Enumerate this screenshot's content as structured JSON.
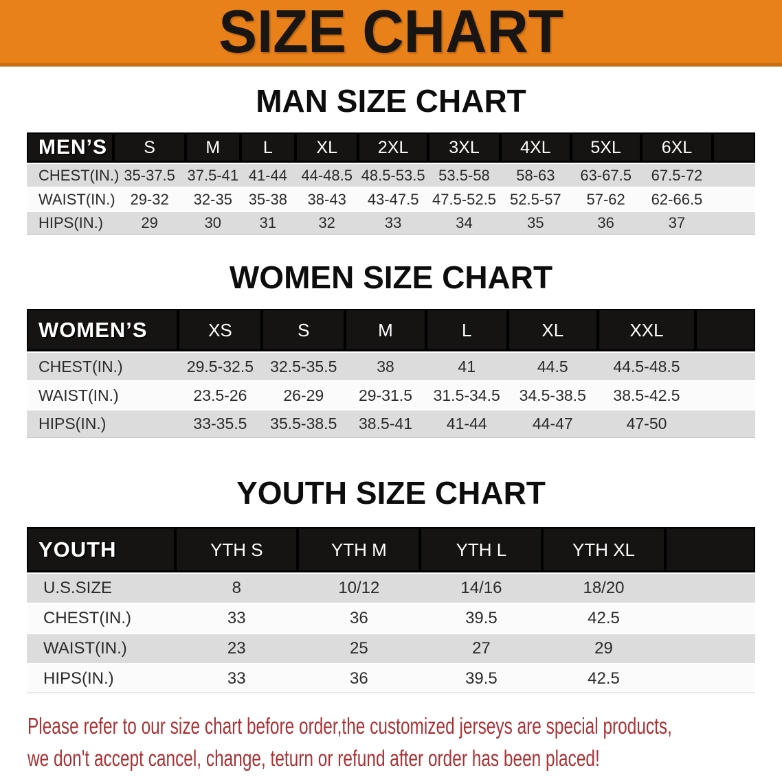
{
  "banner": {
    "title": "SIZE CHART"
  },
  "chart_data": [
    {
      "type": "table",
      "title": "MAN SIZE CHART",
      "header_label": "MEN’S",
      "columns": [
        "S",
        "M",
        "L",
        "XL",
        "2XL",
        "3XL",
        "4XL",
        "5XL",
        "6XL"
      ],
      "rows": [
        {
          "label": "CHEST(IN.)",
          "values": [
            "35-37.5",
            "37.5-41",
            "41-44",
            "44-48.5",
            "48.5-53.5",
            "53.5-58",
            "58-63",
            "63-67.5",
            "67.5-72"
          ]
        },
        {
          "label": "WAIST(IN.)",
          "values": [
            "29-32",
            "32-35",
            "35-38",
            "38-43",
            "43-47.5",
            "47.5-52.5",
            "52.5-57",
            "57-62",
            "62-66.5"
          ]
        },
        {
          "label": "HIPS(IN.)",
          "values": [
            "29",
            "30",
            "31",
            "32",
            "33",
            "34",
            "35",
            "36",
            "37"
          ]
        }
      ]
    },
    {
      "type": "table",
      "title": "WOMEN SIZE CHART",
      "header_label": "WOMEN’S",
      "columns": [
        "XS",
        "S",
        "M",
        "L",
        "XL",
        "XXL"
      ],
      "rows": [
        {
          "label": "CHEST(IN.)",
          "values": [
            "29.5-32.5",
            "32.5-35.5",
            "38",
            "41",
            "44.5",
            "44.5-48.5"
          ]
        },
        {
          "label": "WAIST(IN.)",
          "values": [
            "23.5-26",
            "26-29",
            "29-31.5",
            "31.5-34.5",
            "34.5-38.5",
            "38.5-42.5"
          ]
        },
        {
          "label": "HIPS(IN.)",
          "values": [
            "33-35.5",
            "35.5-38.5",
            "38.5-41",
            "41-44",
            "44-47",
            "47-50"
          ]
        }
      ]
    },
    {
      "type": "table",
      "title": "YOUTH SIZE CHART",
      "header_label": "YOUTH",
      "columns": [
        "YTH S",
        "YTH M",
        "YTH L",
        "YTH XL"
      ],
      "rows": [
        {
          "label": "U.S.SIZE",
          "values": [
            "8",
            "10/12",
            "14/16",
            "18/20"
          ]
        },
        {
          "label": "CHEST(IN.)",
          "values": [
            "33",
            "36",
            "39.5",
            "42.5"
          ]
        },
        {
          "label": "WAIST(IN.)",
          "values": [
            "23",
            "25",
            "27",
            "29"
          ]
        },
        {
          "label": "HIPS(IN.)",
          "values": [
            "33",
            "36",
            "39.5",
            "42.5"
          ]
        }
      ]
    }
  ],
  "disclaimer": {
    "lines": [
      "Please refer to our size chart before order,the customized jerseys are special products,",
      "we don't accept cancel, change, teturn or refund after order has been placed!"
    ]
  },
  "colors": {
    "banner_bg": "#E8811A",
    "banner_border": "#C96F12",
    "banner_text": "#181512",
    "header_bar_bg": "#161412",
    "header_bar_text": "#FFFFFF",
    "row_gray": "#DCDCDC",
    "row_white": "#FBFBFB",
    "data_text": "#2A2A2A",
    "disclaimer_text": "#A93236"
  }
}
